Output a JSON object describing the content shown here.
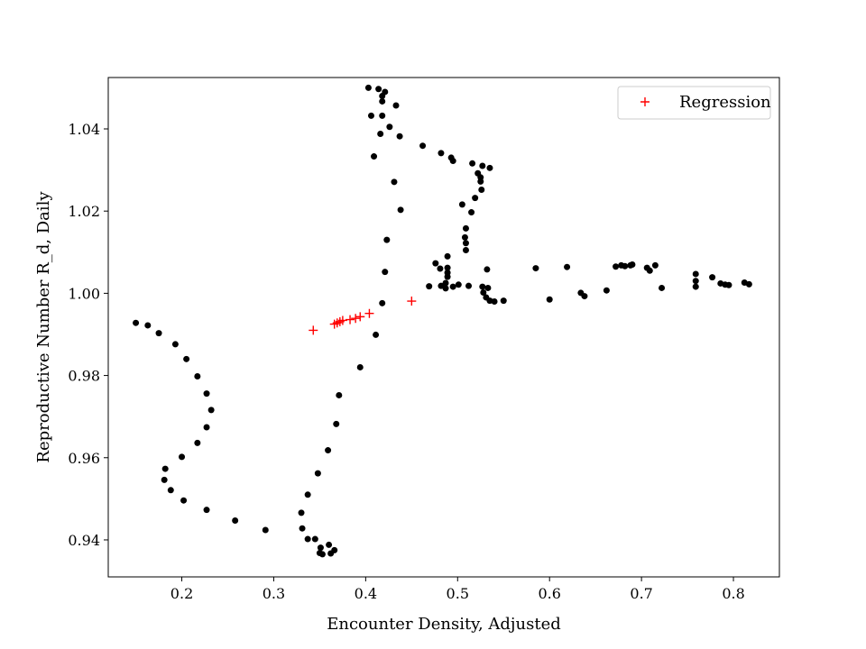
{
  "chart_data": {
    "type": "scatter",
    "title": "",
    "xlabel": "Encounter Density, Adjusted",
    "ylabel": "Reproductive Number R_d, Daily",
    "xlim": [
      0.12,
      0.85
    ],
    "ylim": [
      0.931,
      1.0525
    ],
    "x_ticks": [
      0.2,
      0.3,
      0.4,
      0.5,
      0.6,
      0.7,
      0.8
    ],
    "x_tick_labels": [
      "0.2",
      "0.3",
      "0.4",
      "0.5",
      "0.6",
      "0.7",
      "0.8"
    ],
    "y_ticks": [
      0.94,
      0.96,
      0.98,
      1.0,
      1.02,
      1.04
    ],
    "y_tick_labels": [
      "0.94",
      "0.96",
      "0.98",
      "1.00",
      "1.02",
      "1.04"
    ],
    "grid": false,
    "legend_position": "top-right",
    "series": [
      {
        "name": "",
        "marker": "dot",
        "color": "#000000",
        "points": [
          [
            0.15,
            0.9928
          ],
          [
            0.163,
            0.9922
          ],
          [
            0.175,
            0.9903
          ],
          [
            0.193,
            0.9876
          ],
          [
            0.205,
            0.984
          ],
          [
            0.217,
            0.9798
          ],
          [
            0.227,
            0.9756
          ],
          [
            0.232,
            0.9716
          ],
          [
            0.227,
            0.9674
          ],
          [
            0.217,
            0.9636
          ],
          [
            0.2,
            0.9602
          ],
          [
            0.182,
            0.9573
          ],
          [
            0.181,
            0.9546
          ],
          [
            0.188,
            0.9521
          ],
          [
            0.202,
            0.9496
          ],
          [
            0.227,
            0.9473
          ],
          [
            0.258,
            0.9447
          ],
          [
            0.291,
            0.9424
          ],
          [
            0.33,
            0.9466
          ],
          [
            0.331,
            0.9428
          ],
          [
            0.337,
            0.9402
          ],
          [
            0.345,
            0.9402
          ],
          [
            0.351,
            0.9381
          ],
          [
            0.35,
            0.9368
          ],
          [
            0.36,
            0.9388
          ],
          [
            0.366,
            0.9375
          ],
          [
            0.362,
            0.9367
          ],
          [
            0.353,
            0.9365
          ],
          [
            0.337,
            0.951
          ],
          [
            0.348,
            0.9562
          ],
          [
            0.359,
            0.9618
          ],
          [
            0.368,
            0.9682
          ],
          [
            0.371,
            0.9752
          ],
          [
            0.394,
            0.982
          ],
          [
            0.411,
            0.9899
          ],
          [
            0.418,
            0.9976
          ],
          [
            0.421,
            1.0052
          ],
          [
            0.423,
            1.013
          ],
          [
            0.438,
            1.0203
          ],
          [
            0.431,
            1.0271
          ],
          [
            0.409,
            1.0333
          ],
          [
            0.416,
            1.0388
          ],
          [
            0.426,
            1.0405
          ],
          [
            0.437,
            1.0382
          ],
          [
            0.406,
            1.0432
          ],
          [
            0.418,
            1.0432
          ],
          [
            0.433,
            1.0457
          ],
          [
            0.418,
            1.0467
          ],
          [
            0.418,
            1.048
          ],
          [
            0.421,
            1.049
          ],
          [
            0.414,
            1.0497
          ],
          [
            0.403,
            1.05
          ],
          [
            0.462,
            1.0359
          ],
          [
            0.482,
            1.0341
          ],
          [
            0.493,
            1.033
          ],
          [
            0.495,
            1.0322
          ],
          [
            0.516,
            1.0316
          ],
          [
            0.527,
            1.031
          ],
          [
            0.535,
            1.0305
          ],
          [
            0.522,
            1.0292
          ],
          [
            0.525,
            1.0282
          ],
          [
            0.525,
            1.0272
          ],
          [
            0.526,
            1.0252
          ],
          [
            0.519,
            1.0232
          ],
          [
            0.505,
            1.0216
          ],
          [
            0.515,
            1.0197
          ],
          [
            0.509,
            1.0158
          ],
          [
            0.508,
            1.0136
          ],
          [
            0.509,
            1.0122
          ],
          [
            0.509,
            1.0105
          ],
          [
            0.489,
            1.009
          ],
          [
            0.476,
            1.0073
          ],
          [
            0.481,
            1.006
          ],
          [
            0.489,
            1.0062
          ],
          [
            0.489,
            1.005
          ],
          [
            0.489,
            1.004
          ],
          [
            0.487,
            1.0025
          ],
          [
            0.482,
            1.0018
          ],
          [
            0.469,
            1.0017
          ],
          [
            0.487,
            1.0012
          ],
          [
            0.495,
            1.0016
          ],
          [
            0.501,
            1.0021
          ],
          [
            0.512,
            1.0018
          ],
          [
            0.527,
            1.0016
          ],
          [
            0.533,
            1.0013
          ],
          [
            0.528,
            1.0002
          ],
          [
            0.531,
            0.999
          ],
          [
            0.535,
            0.9982
          ],
          [
            0.54,
            0.998
          ],
          [
            0.55,
            0.9982
          ],
          [
            0.532,
            1.0058
          ],
          [
            0.585,
            1.0061
          ],
          [
            0.619,
            1.0064
          ],
          [
            0.6,
            0.9985
          ],
          [
            0.634,
            1.0001
          ],
          [
            0.638,
            0.9993
          ],
          [
            0.662,
            1.0007
          ],
          [
            0.672,
            1.0065
          ],
          [
            0.678,
            1.0068
          ],
          [
            0.688,
            1.0068
          ],
          [
            0.682,
            1.0066
          ],
          [
            0.69,
            1.007
          ],
          [
            0.706,
            1.0062
          ],
          [
            0.709,
            1.0055
          ],
          [
            0.715,
            1.0068
          ],
          [
            0.722,
            1.0013
          ],
          [
            0.759,
            1.0047
          ],
          [
            0.759,
            1.003
          ],
          [
            0.759,
            1.0016
          ],
          [
            0.777,
            1.0039
          ],
          [
            0.786,
            1.0024
          ],
          [
            0.791,
            1.0021
          ],
          [
            0.795,
            1.002
          ],
          [
            0.812,
            1.0026
          ],
          [
            0.817,
            1.0022
          ]
        ]
      },
      {
        "name": "Regression",
        "marker": "plus",
        "color": "#ff0000",
        "points": [
          [
            0.343,
            0.991
          ],
          [
            0.366,
            0.9925
          ],
          [
            0.369,
            0.9928
          ],
          [
            0.372,
            0.9931
          ],
          [
            0.375,
            0.9934
          ],
          [
            0.383,
            0.9936
          ],
          [
            0.389,
            0.9939
          ],
          [
            0.394,
            0.9943
          ],
          [
            0.404,
            0.9951
          ],
          [
            0.45,
            0.9981
          ]
        ]
      }
    ]
  }
}
